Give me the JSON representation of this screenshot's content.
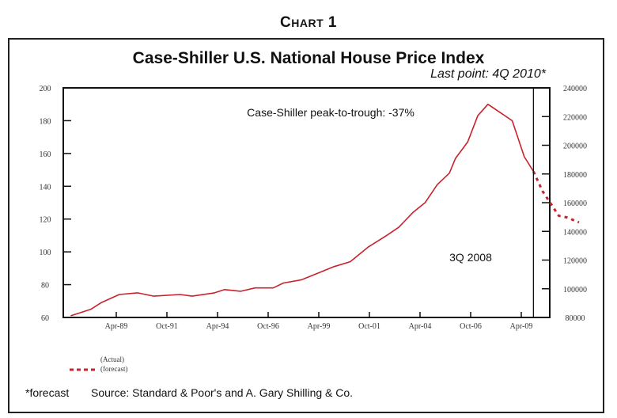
{
  "header": {
    "chart_label_first": "C",
    "chart_label_rest": "HART",
    "chart_number": "1"
  },
  "chart_data": {
    "type": "line",
    "title": "Case-Shiller U.S. National House Price Index",
    "subtitle": "Last point: 4Q 2010*",
    "xlabel": "",
    "ylabel": "",
    "grid": false,
    "x_range_years": [
      1987.0,
      2010.9
    ],
    "ylim": [
      60,
      200
    ],
    "yticks": [
      60,
      80,
      100,
      120,
      140,
      160,
      180,
      200
    ],
    "ylim_right": [
      80000,
      240000
    ],
    "yticks_right": [
      80000,
      100000,
      120000,
      140000,
      160000,
      180000,
      200000,
      220000,
      240000
    ],
    "xticks": [
      {
        "label": "Apr-89",
        "year": 1989.25
      },
      {
        "label": "Oct-91",
        "year": 1991.75
      },
      {
        "label": "Apr-94",
        "year": 1994.25
      },
      {
        "label": "Oct-96",
        "year": 1996.75
      },
      {
        "label": "Apr-99",
        "year": 1999.25
      },
      {
        "label": "Oct-01",
        "year": 2001.75
      },
      {
        "label": "Apr-04",
        "year": 2004.25
      },
      {
        "label": "Oct-06",
        "year": 2006.75
      },
      {
        "label": "Apr-09",
        "year": 2009.25
      }
    ],
    "series": [
      {
        "name": "Actual",
        "style": "solid",
        "color": "#c8232c",
        "points": [
          [
            1987.0,
            61
          ],
          [
            1988.0,
            65
          ],
          [
            1988.5,
            69
          ],
          [
            1989.4,
            74
          ],
          [
            1990.3,
            75
          ],
          [
            1991.1,
            73
          ],
          [
            1992.4,
            74
          ],
          [
            1993.0,
            73
          ],
          [
            1994.1,
            75
          ],
          [
            1994.6,
            77
          ],
          [
            1995.4,
            76
          ],
          [
            1996.1,
            78
          ],
          [
            1997.0,
            78
          ],
          [
            1997.5,
            81
          ],
          [
            1998.4,
            83
          ],
          [
            1999.2,
            87
          ],
          [
            2000.0,
            91
          ],
          [
            2000.8,
            94
          ],
          [
            2001.7,
            103
          ],
          [
            2002.6,
            110
          ],
          [
            2003.2,
            115
          ],
          [
            2003.9,
            124
          ],
          [
            2004.5,
            130
          ],
          [
            2005.1,
            141
          ],
          [
            2005.7,
            148
          ],
          [
            2006.0,
            157
          ],
          [
            2006.6,
            167
          ],
          [
            2007.1,
            183
          ],
          [
            2007.6,
            190
          ],
          [
            2008.8,
            180
          ],
          [
            2009.4,
            158
          ],
          [
            2009.85,
            149
          ]
        ]
      },
      {
        "name": "forecast",
        "style": "dashed",
        "color": "#c8232c",
        "points": [
          [
            2009.85,
            149
          ],
          [
            2010.3,
            137
          ],
          [
            2010.7,
            129.5
          ],
          [
            2011.1,
            122
          ],
          [
            2011.5,
            121
          ],
          [
            2012.1,
            118
          ]
        ]
      }
    ],
    "annotations": [
      {
        "text": "Case-Shiller peak-to-trough: -37%",
        "position": "upper-center"
      },
      {
        "text": "3Q 2008",
        "position": "left-of-vertical-line",
        "vertical_line_year": 2009.85
      }
    ],
    "legend": {
      "placement": "bottom-left",
      "entries": [
        {
          "label": "(Actual)",
          "style": "solid"
        },
        {
          "label": "(forecast)",
          "style": "dashed"
        }
      ]
    }
  },
  "footer": {
    "note": "*forecast",
    "source": "Source: Standard & Poor's and A. Gary Shilling & Co."
  }
}
